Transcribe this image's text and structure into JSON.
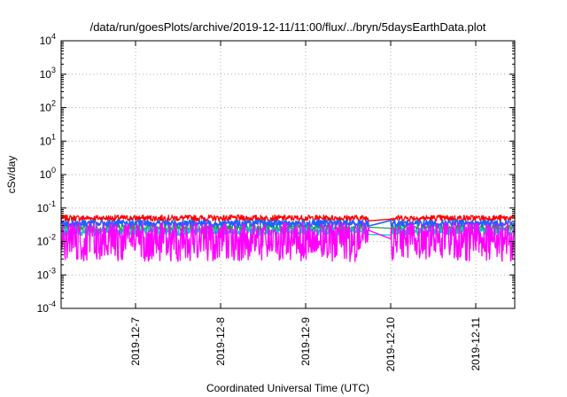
{
  "chart_data": {
    "type": "line",
    "title": "/data/run/goesPlots/archive/2019-12-11/11:00/flux/../bryn/5daysEarthData.plot",
    "xlabel": "Coordinated Universal Time (UTC)",
    "ylabel": "cSv/day",
    "yscale": "log",
    "ylim": [
      0.0001,
      10000
    ],
    "xlim": [
      "2019-12-06 03:00",
      "2019-12-11 11:00"
    ],
    "grid": true,
    "ytick_labels": [
      {
        "base": "10",
        "exp": "-4"
      },
      {
        "base": "10",
        "exp": "-3"
      },
      {
        "base": "10",
        "exp": "-2"
      },
      {
        "base": "10",
        "exp": "-1"
      },
      {
        "base": "10",
        "exp": "0"
      },
      {
        "base": "10",
        "exp": "1"
      },
      {
        "base": "10",
        "exp": "2"
      },
      {
        "base": "10",
        "exp": "3"
      },
      {
        "base": "10",
        "exp": "4"
      }
    ],
    "xtick_labels": [
      "2019-12-7",
      "2019-12-8",
      "2019-12-9",
      "2019-12-10",
      "2019-12-11"
    ],
    "xtick_dates": [
      "2019-12-07",
      "2019-12-08",
      "2019-12-09",
      "2019-12-10",
      "2019-12-11"
    ],
    "gap": [
      "2019-12-09 18:00",
      "2019-12-10 00:00"
    ],
    "series": [
      {
        "color": "#ff0000",
        "level": 0.05,
        "spread": 0.09
      },
      {
        "color": "#1e9e50",
        "level": 0.025,
        "spread": 0.12
      },
      {
        "color": "#00c8c8",
        "level": 0.02,
        "spread": 0.12
      },
      {
        "color": "#2060ff",
        "level": 0.035,
        "spread": 0.1
      },
      {
        "color": "#ff00ff",
        "level": 0.008,
        "spread": 0.28
      }
    ]
  }
}
